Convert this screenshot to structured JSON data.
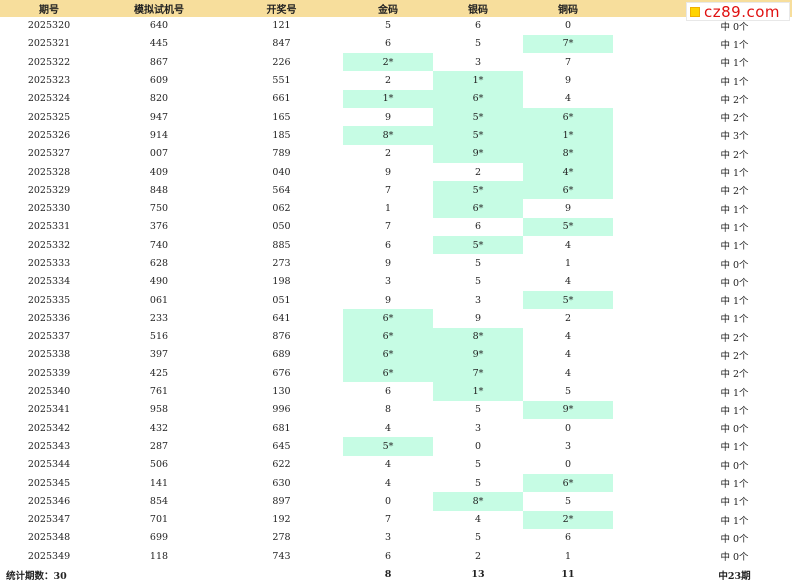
{
  "headers": [
    "期号",
    "模拟试机号",
    "开奖号",
    "金码",
    "银码",
    "铜码",
    ""
  ],
  "brand": "cz89.com",
  "rows": [
    {
      "issue": "2025320",
      "sim": "640",
      "draw": "121",
      "gold": "5",
      "silver": "6",
      "bronze": "0",
      "hits": "中 0个",
      "g": false,
      "s": false,
      "b": false
    },
    {
      "issue": "2025321",
      "sim": "445",
      "draw": "847",
      "gold": "6",
      "silver": "5",
      "bronze": "7*",
      "hits": "中 1个",
      "g": false,
      "s": false,
      "b": true
    },
    {
      "issue": "2025322",
      "sim": "867",
      "draw": "226",
      "gold": "2*",
      "silver": "3",
      "bronze": "7",
      "hits": "中 1个",
      "g": true,
      "s": false,
      "b": false
    },
    {
      "issue": "2025323",
      "sim": "609",
      "draw": "551",
      "gold": "2",
      "silver": "1*",
      "bronze": "9",
      "hits": "中 1个",
      "g": false,
      "s": true,
      "b": false
    },
    {
      "issue": "2025324",
      "sim": "820",
      "draw": "661",
      "gold": "1*",
      "silver": "6*",
      "bronze": "4",
      "hits": "中 2个",
      "g": true,
      "s": true,
      "b": false
    },
    {
      "issue": "2025325",
      "sim": "947",
      "draw": "165",
      "gold": "9",
      "silver": "5*",
      "bronze": "6*",
      "hits": "中 2个",
      "g": false,
      "s": true,
      "b": true
    },
    {
      "issue": "2025326",
      "sim": "914",
      "draw": "185",
      "gold": "8*",
      "silver": "5*",
      "bronze": "1*",
      "hits": "中 3个",
      "g": true,
      "s": true,
      "b": true
    },
    {
      "issue": "2025327",
      "sim": "007",
      "draw": "789",
      "gold": "2",
      "silver": "9*",
      "bronze": "8*",
      "hits": "中 2个",
      "g": false,
      "s": true,
      "b": true
    },
    {
      "issue": "2025328",
      "sim": "409",
      "draw": "040",
      "gold": "9",
      "silver": "2",
      "bronze": "4*",
      "hits": "中 1个",
      "g": false,
      "s": false,
      "b": true
    },
    {
      "issue": "2025329",
      "sim": "848",
      "draw": "564",
      "gold": "7",
      "silver": "5*",
      "bronze": "6*",
      "hits": "中 2个",
      "g": false,
      "s": true,
      "b": true
    },
    {
      "issue": "2025330",
      "sim": "750",
      "draw": "062",
      "gold": "1",
      "silver": "6*",
      "bronze": "9",
      "hits": "中 1个",
      "g": false,
      "s": true,
      "b": false
    },
    {
      "issue": "2025331",
      "sim": "376",
      "draw": "050",
      "gold": "7",
      "silver": "6",
      "bronze": "5*",
      "hits": "中 1个",
      "g": false,
      "s": false,
      "b": true
    },
    {
      "issue": "2025332",
      "sim": "740",
      "draw": "885",
      "gold": "6",
      "silver": "5*",
      "bronze": "4",
      "hits": "中 1个",
      "g": false,
      "s": true,
      "b": false
    },
    {
      "issue": "2025333",
      "sim": "628",
      "draw": "273",
      "gold": "9",
      "silver": "5",
      "bronze": "1",
      "hits": "中 0个",
      "g": false,
      "s": false,
      "b": false
    },
    {
      "issue": "2025334",
      "sim": "490",
      "draw": "198",
      "gold": "3",
      "silver": "5",
      "bronze": "4",
      "hits": "中 0个",
      "g": false,
      "s": false,
      "b": false
    },
    {
      "issue": "2025335",
      "sim": "061",
      "draw": "051",
      "gold": "9",
      "silver": "3",
      "bronze": "5*",
      "hits": "中 1个",
      "g": false,
      "s": false,
      "b": true
    },
    {
      "issue": "2025336",
      "sim": "233",
      "draw": "641",
      "gold": "6*",
      "silver": "9",
      "bronze": "2",
      "hits": "中 1个",
      "g": true,
      "s": false,
      "b": false
    },
    {
      "issue": "2025337",
      "sim": "516",
      "draw": "876",
      "gold": "6*",
      "silver": "8*",
      "bronze": "4",
      "hits": "中 2个",
      "g": true,
      "s": true,
      "b": false
    },
    {
      "issue": "2025338",
      "sim": "397",
      "draw": "689",
      "gold": "6*",
      "silver": "9*",
      "bronze": "4",
      "hits": "中 2个",
      "g": true,
      "s": true,
      "b": false
    },
    {
      "issue": "2025339",
      "sim": "425",
      "draw": "676",
      "gold": "6*",
      "silver": "7*",
      "bronze": "4",
      "hits": "中 2个",
      "g": true,
      "s": true,
      "b": false
    },
    {
      "issue": "2025340",
      "sim": "761",
      "draw": "130",
      "gold": "6",
      "silver": "1*",
      "bronze": "5",
      "hits": "中 1个",
      "g": false,
      "s": true,
      "b": false
    },
    {
      "issue": "2025341",
      "sim": "958",
      "draw": "996",
      "gold": "8",
      "silver": "5",
      "bronze": "9*",
      "hits": "中 1个",
      "g": false,
      "s": false,
      "b": true
    },
    {
      "issue": "2025342",
      "sim": "432",
      "draw": "681",
      "gold": "4",
      "silver": "3",
      "bronze": "0",
      "hits": "中 0个",
      "g": false,
      "s": false,
      "b": false
    },
    {
      "issue": "2025343",
      "sim": "287",
      "draw": "645",
      "gold": "5*",
      "silver": "0",
      "bronze": "3",
      "hits": "中 1个",
      "g": true,
      "s": false,
      "b": false
    },
    {
      "issue": "2025344",
      "sim": "506",
      "draw": "622",
      "gold": "4",
      "silver": "5",
      "bronze": "0",
      "hits": "中 0个",
      "g": false,
      "s": false,
      "b": false
    },
    {
      "issue": "2025345",
      "sim": "141",
      "draw": "630",
      "gold": "4",
      "silver": "5",
      "bronze": "6*",
      "hits": "中 1个",
      "g": false,
      "s": false,
      "b": true
    },
    {
      "issue": "2025346",
      "sim": "854",
      "draw": "897",
      "gold": "0",
      "silver": "8*",
      "bronze": "5",
      "hits": "中 1个",
      "g": false,
      "s": true,
      "b": false
    },
    {
      "issue": "2025347",
      "sim": "701",
      "draw": "192",
      "gold": "7",
      "silver": "4",
      "bronze": "2*",
      "hits": "中 1个",
      "g": false,
      "s": false,
      "b": true
    },
    {
      "issue": "2025348",
      "sim": "699",
      "draw": "278",
      "gold": "3",
      "silver": "5",
      "bronze": "6",
      "hits": "中 0个",
      "g": false,
      "s": false,
      "b": false
    },
    {
      "issue": "2025349",
      "sim": "118",
      "draw": "743",
      "gold": "6",
      "silver": "2",
      "bronze": "1",
      "hits": "中 0个",
      "g": false,
      "s": false,
      "b": false
    }
  ],
  "footer": {
    "label": "统计期数：30",
    "gold_total": "8",
    "silver_total": "13",
    "bronze_total": "11",
    "hit_total": "中23期"
  },
  "colors": {
    "header_bg": "#f7de9c",
    "hit_bg": "#c6fce4",
    "brand": "#e01010"
  }
}
